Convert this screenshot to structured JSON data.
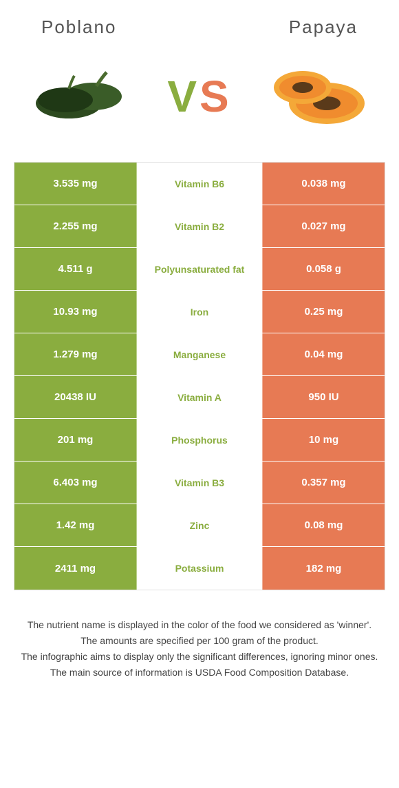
{
  "header": {
    "left_title": "Poblano",
    "right_title": "Papaya"
  },
  "vs": {
    "v": "V",
    "s": "S"
  },
  "colors": {
    "left_bg": "#8aad3f",
    "right_bg": "#e77a54",
    "left_text": "#8aad3f",
    "right_text": "#e77a54",
    "mid_bg": "#ffffff",
    "body_bg": "#ffffff",
    "border": "#e0e0e0",
    "footer_text": "#444444"
  },
  "table": {
    "rows": [
      {
        "left": "3.535 mg",
        "label": "Vitamin B6",
        "right": "0.038 mg",
        "winner": "left"
      },
      {
        "left": "2.255 mg",
        "label": "Vitamin B2",
        "right": "0.027 mg",
        "winner": "left"
      },
      {
        "left": "4.511 g",
        "label": "Polyunsaturated fat",
        "right": "0.058 g",
        "winner": "left"
      },
      {
        "left": "10.93 mg",
        "label": "Iron",
        "right": "0.25 mg",
        "winner": "left"
      },
      {
        "left": "1.279 mg",
        "label": "Manganese",
        "right": "0.04 mg",
        "winner": "left"
      },
      {
        "left": "20438 IU",
        "label": "Vitamin A",
        "right": "950 IU",
        "winner": "left"
      },
      {
        "left": "201 mg",
        "label": "Phosphorus",
        "right": "10 mg",
        "winner": "left"
      },
      {
        "left": "6.403 mg",
        "label": "Vitamin B3",
        "right": "0.357 mg",
        "winner": "left"
      },
      {
        "left": "1.42 mg",
        "label": "Zinc",
        "right": "0.08 mg",
        "winner": "left"
      },
      {
        "left": "2411 mg",
        "label": "Potassium",
        "right": "182 mg",
        "winner": "left"
      }
    ]
  },
  "footer": {
    "line1": "The nutrient name is displayed in the color of the food we considered as 'winner'.",
    "line2": "The amounts are specified per 100 gram of the product.",
    "line3": "The infographic aims to display only the significant differences, ignoring minor ones.",
    "line4": "The main source of information is USDA Food Composition Database."
  }
}
